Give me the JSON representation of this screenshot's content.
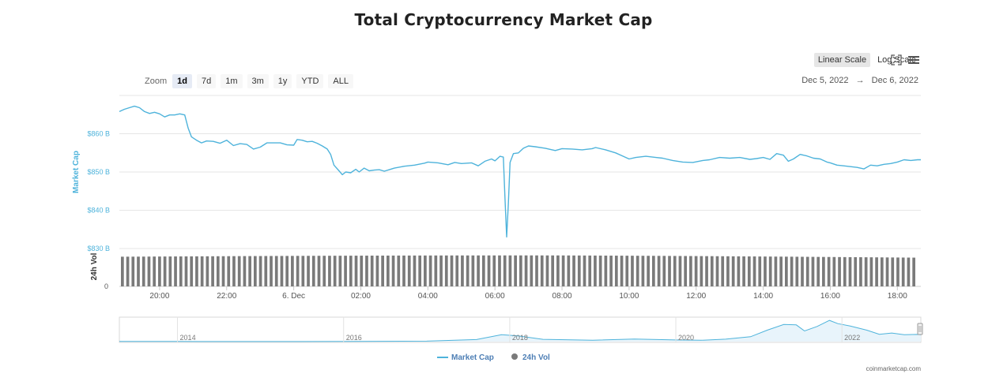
{
  "title": "Total Cryptocurrency Market Cap",
  "controls": {
    "scale_buttons": [
      "Linear Scale",
      "Log Scale"
    ],
    "active_scale": "Linear Scale",
    "zoom_label": "Zoom",
    "zoom_buttons": [
      "1d",
      "7d",
      "1m",
      "3m",
      "1y",
      "YTD",
      "ALL"
    ],
    "active_zoom": "1d",
    "date_from": "Dec 5, 2022",
    "date_arrow": "→",
    "date_to": "Dec 6, 2022"
  },
  "credit": "coinmarketcap.com",
  "colors": {
    "market_cap": "#4eb3db",
    "axis_label": "#4eb3db",
    "volume_bar": "#7a7a7a",
    "navigator_fill": "#e8f4fb"
  },
  "chart_data": {
    "type": "line",
    "title": "Total Cryptocurrency Market Cap",
    "ylabel": "Market Cap",
    "ylabel2": "24h Vol",
    "ylim": [
      830,
      870
    ],
    "y_ticks": [
      "$860 B",
      "$850 B",
      "$840 B",
      "$830 B"
    ],
    "y_tick_values": [
      860,
      850,
      840,
      830
    ],
    "vol_tick": "0",
    "x_range_hours": [
      18.8,
      42.7
    ],
    "x_ticks": [
      "20:00",
      "22:00",
      "6. Dec",
      "02:00",
      "04:00",
      "06:00",
      "08:00",
      "10:00",
      "12:00",
      "14:00",
      "16:00",
      "18:00"
    ],
    "x_tick_hours": [
      20,
      22,
      24,
      26,
      28,
      30,
      32,
      34,
      36,
      38,
      40,
      42
    ],
    "series": [
      {
        "name": "Market Cap",
        "unit": "B USD",
        "points": [
          [
            18.8,
            865.8
          ],
          [
            18.95,
            866.4
          ],
          [
            19.1,
            866.8
          ],
          [
            19.25,
            867.2
          ],
          [
            19.4,
            866.8
          ],
          [
            19.55,
            865.8
          ],
          [
            19.7,
            865.3
          ],
          [
            19.85,
            865.6
          ],
          [
            20.0,
            865.2
          ],
          [
            20.15,
            864.4
          ],
          [
            20.3,
            864.9
          ],
          [
            20.45,
            864.9
          ],
          [
            20.6,
            865.2
          ],
          [
            20.75,
            864.9
          ],
          [
            20.85,
            861.5
          ],
          [
            20.95,
            859.2
          ],
          [
            21.1,
            858.3
          ],
          [
            21.25,
            857.6
          ],
          [
            21.4,
            858.1
          ],
          [
            21.6,
            858.0
          ],
          [
            21.8,
            857.5
          ],
          [
            22.0,
            858.3
          ],
          [
            22.2,
            856.9
          ],
          [
            22.4,
            857.4
          ],
          [
            22.6,
            857.2
          ],
          [
            22.8,
            856.0
          ],
          [
            23.0,
            856.5
          ],
          [
            23.2,
            857.6
          ],
          [
            23.4,
            857.6
          ],
          [
            23.6,
            857.6
          ],
          [
            23.8,
            857.1
          ],
          [
            24.0,
            857.0
          ],
          [
            24.1,
            858.5
          ],
          [
            24.25,
            858.3
          ],
          [
            24.4,
            857.9
          ],
          [
            24.55,
            858.0
          ],
          [
            24.7,
            857.5
          ],
          [
            24.85,
            856.8
          ],
          [
            25.0,
            856.0
          ],
          [
            25.1,
            854.6
          ],
          [
            25.2,
            851.8
          ],
          [
            25.35,
            850.3
          ],
          [
            25.45,
            849.3
          ],
          [
            25.55,
            850.0
          ],
          [
            25.7,
            849.8
          ],
          [
            25.85,
            850.7
          ],
          [
            25.95,
            850.0
          ],
          [
            26.1,
            851.0
          ],
          [
            26.25,
            850.3
          ],
          [
            26.4,
            850.5
          ],
          [
            26.55,
            850.6
          ],
          [
            26.7,
            850.2
          ],
          [
            26.85,
            850.6
          ],
          [
            27.0,
            851.0
          ],
          [
            27.3,
            851.5
          ],
          [
            27.6,
            851.8
          ],
          [
            27.9,
            852.3
          ],
          [
            28.0,
            852.6
          ],
          [
            28.3,
            852.4
          ],
          [
            28.6,
            851.9
          ],
          [
            28.8,
            852.5
          ],
          [
            29.0,
            852.2
          ],
          [
            29.3,
            852.4
          ],
          [
            29.5,
            851.6
          ],
          [
            29.7,
            852.8
          ],
          [
            29.9,
            853.4
          ],
          [
            30.0,
            852.9
          ],
          [
            30.15,
            854.1
          ],
          [
            30.25,
            853.9
          ],
          [
            30.3,
            843.0
          ],
          [
            30.35,
            833.0
          ],
          [
            30.4,
            842.0
          ],
          [
            30.45,
            852.5
          ],
          [
            30.55,
            854.8
          ],
          [
            30.7,
            855.0
          ],
          [
            30.85,
            856.2
          ],
          [
            31.0,
            856.8
          ],
          [
            31.2,
            856.6
          ],
          [
            31.5,
            856.2
          ],
          [
            31.8,
            855.6
          ],
          [
            32.0,
            856.1
          ],
          [
            32.3,
            856.0
          ],
          [
            32.6,
            855.8
          ],
          [
            32.9,
            856.1
          ],
          [
            33.0,
            856.4
          ],
          [
            33.3,
            855.8
          ],
          [
            33.6,
            855.0
          ],
          [
            33.8,
            854.2
          ],
          [
            34.0,
            853.4
          ],
          [
            34.2,
            853.8
          ],
          [
            34.5,
            854.1
          ],
          [
            34.8,
            853.8
          ],
          [
            35.0,
            853.6
          ],
          [
            35.3,
            853.0
          ],
          [
            35.6,
            852.6
          ],
          [
            35.9,
            852.5
          ],
          [
            36.2,
            853.0
          ],
          [
            36.4,
            853.2
          ],
          [
            36.7,
            853.8
          ],
          [
            37.0,
            853.6
          ],
          [
            37.3,
            853.8
          ],
          [
            37.6,
            853.3
          ],
          [
            37.8,
            853.5
          ],
          [
            38.0,
            853.8
          ],
          [
            38.2,
            853.3
          ],
          [
            38.4,
            854.8
          ],
          [
            38.6,
            854.4
          ],
          [
            38.75,
            852.8
          ],
          [
            38.9,
            853.4
          ],
          [
            39.1,
            854.6
          ],
          [
            39.3,
            854.2
          ],
          [
            39.5,
            853.6
          ],
          [
            39.7,
            853.4
          ],
          [
            39.9,
            852.6
          ],
          [
            40.0,
            852.4
          ],
          [
            40.2,
            851.8
          ],
          [
            40.4,
            851.6
          ],
          [
            40.6,
            851.4
          ],
          [
            40.8,
            851.2
          ],
          [
            41.0,
            850.8
          ],
          [
            41.2,
            851.8
          ],
          [
            41.4,
            851.6
          ],
          [
            41.6,
            852.0
          ],
          [
            41.8,
            852.2
          ],
          [
            42.0,
            852.6
          ],
          [
            42.2,
            853.2
          ],
          [
            42.4,
            853.0
          ],
          [
            42.6,
            853.2
          ],
          [
            42.7,
            853.2
          ]
        ]
      },
      {
        "name": "24h Vol",
        "type": "column",
        "bar_count": 150,
        "relative_level": 0.82
      }
    ],
    "navigator": {
      "x_labels": [
        "2014",
        "2016",
        "2018",
        "2020",
        "2022"
      ],
      "x_label_years": [
        2014,
        2016,
        2018,
        2020,
        2022
      ],
      "x_range_years": [
        2013.3,
        2022.95
      ],
      "points": [
        [
          2013.3,
          0.2
        ],
        [
          2014.0,
          0.2
        ],
        [
          2015.0,
          0.1
        ],
        [
          2016.0,
          0.2
        ],
        [
          2017.0,
          0.6
        ],
        [
          2017.6,
          2.5
        ],
        [
          2017.9,
          8.5
        ],
        [
          2018.1,
          7.0
        ],
        [
          2018.4,
          2.8
        ],
        [
          2019.0,
          1.6
        ],
        [
          2019.5,
          3.2
        ],
        [
          2020.0,
          2.0
        ],
        [
          2020.3,
          1.6
        ],
        [
          2020.6,
          3.0
        ],
        [
          2020.9,
          6.0
        ],
        [
          2021.1,
          14.0
        ],
        [
          2021.3,
          21.0
        ],
        [
          2021.45,
          20.5
        ],
        [
          2021.55,
          13.0
        ],
        [
          2021.7,
          18.5
        ],
        [
          2021.85,
          26.0
        ],
        [
          2021.95,
          22.0
        ],
        [
          2022.1,
          19.0
        ],
        [
          2022.3,
          14.0
        ],
        [
          2022.45,
          9.0
        ],
        [
          2022.6,
          10.5
        ],
        [
          2022.75,
          8.5
        ],
        [
          2022.9,
          8.8
        ],
        [
          2022.95,
          8.5
        ]
      ]
    },
    "legend": [
      "Market Cap",
      "24h Vol"
    ],
    "legend_placement": "bottom-center",
    "grid": true
  }
}
